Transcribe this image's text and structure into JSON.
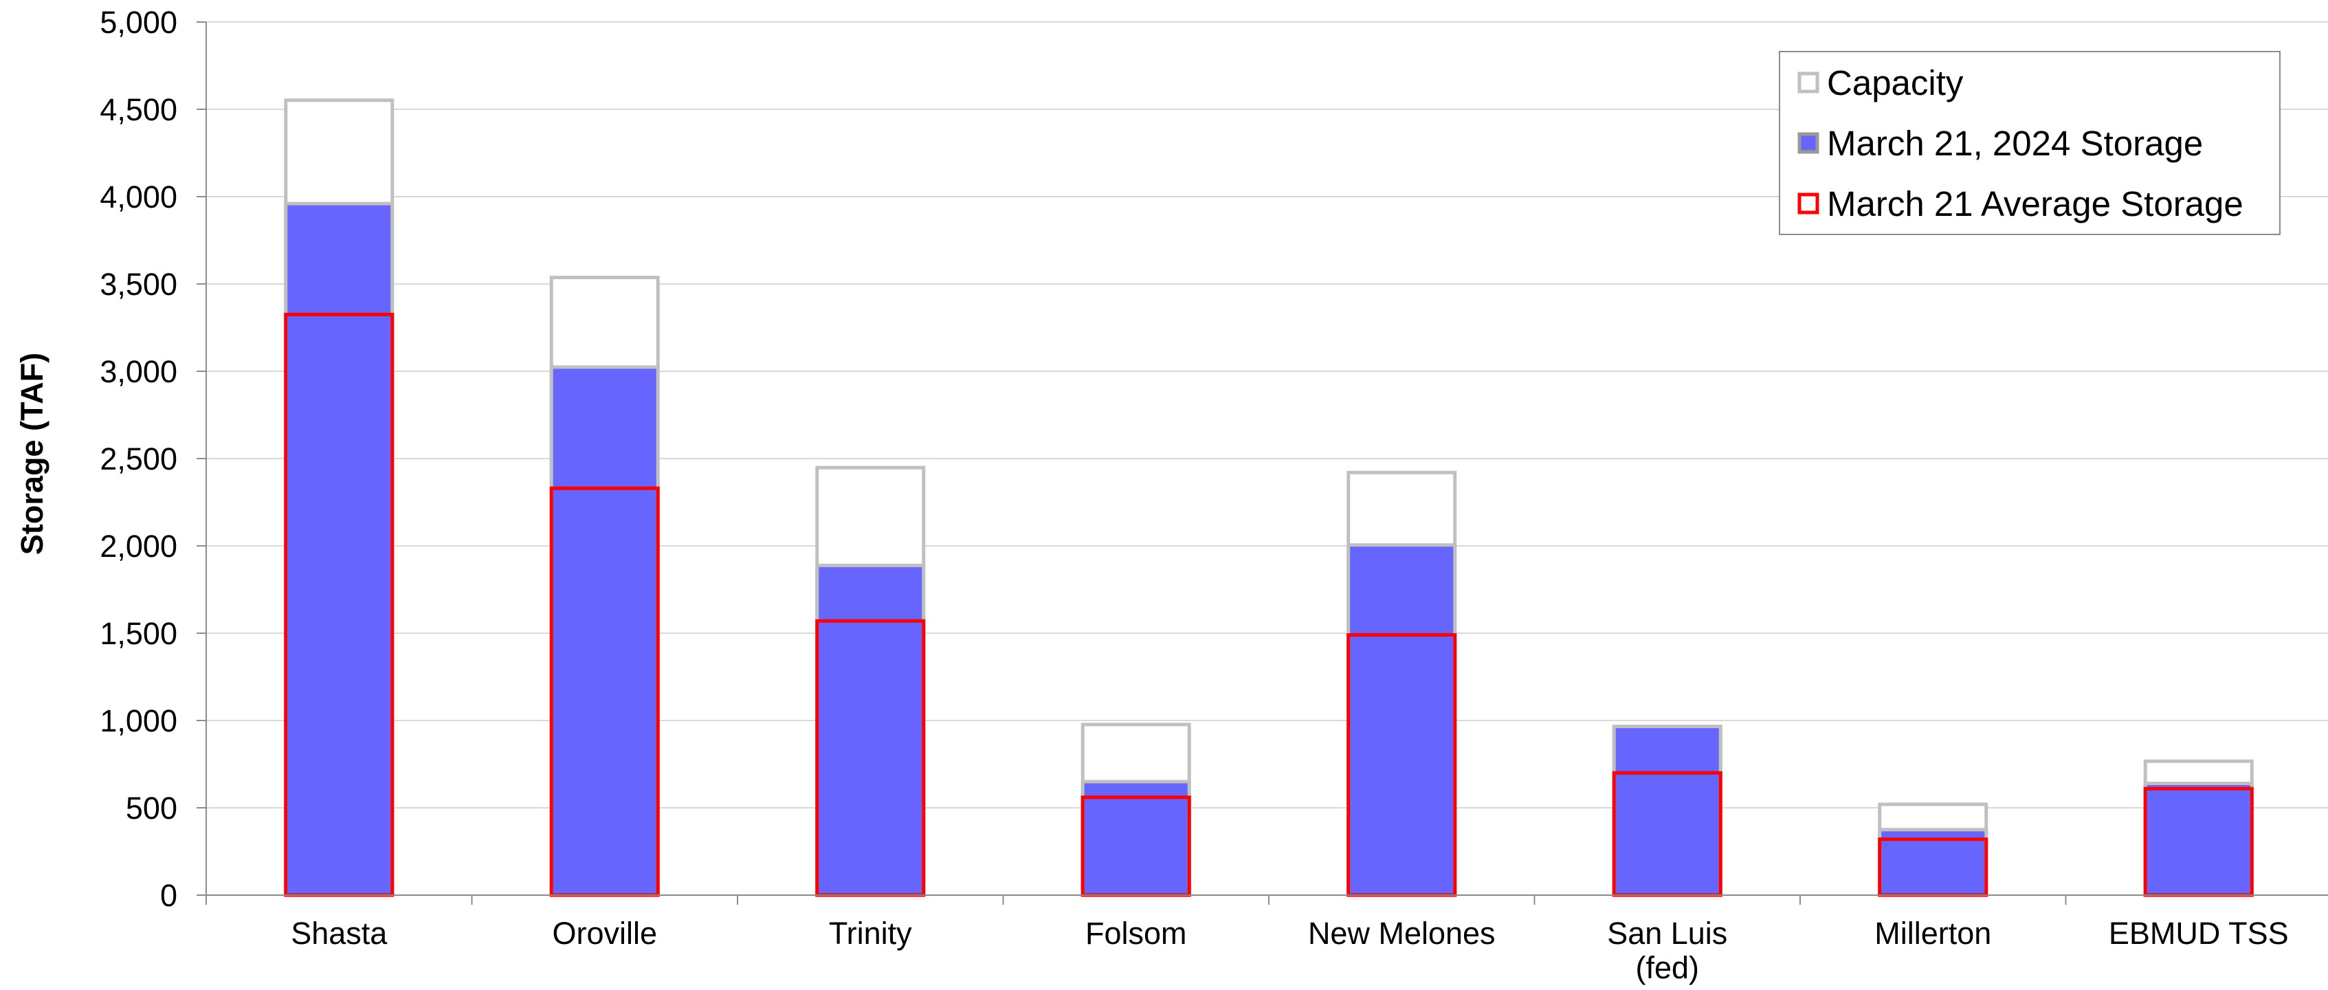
{
  "chart_data": {
    "type": "bar",
    "title": "",
    "xlabel": "",
    "ylabel": "Storage (TAF)",
    "ylim": [
      0,
      5000
    ],
    "yticks": [
      0,
      500,
      1000,
      1500,
      2000,
      2500,
      3000,
      3500,
      4000,
      4500,
      5000
    ],
    "ytick_labels": [
      "0",
      "500",
      "1,000",
      "1,500",
      "2,000",
      "2,500",
      "3,000",
      "3,500",
      "4,000",
      "4,500",
      "5,000"
    ],
    "grid": true,
    "legend_position": "top-right",
    "categories": [
      [
        "Shasta"
      ],
      [
        "Oroville"
      ],
      [
        "Trinity"
      ],
      [
        "Folsom"
      ],
      [
        "New Melones"
      ],
      [
        "San Luis",
        "(fed)"
      ],
      [
        "Millerton"
      ],
      [
        "EBMUD TSS"
      ]
    ],
    "series": [
      {
        "name": "Capacity",
        "style": "outline",
        "color": "#c0c0c0",
        "values": [
          4552,
          3537,
          2448,
          977,
          2420,
          966,
          520,
          767
        ]
      },
      {
        "name": "March 21, 2024 Storage",
        "style": "filled",
        "color": "#6666ff",
        "values": [
          3960,
          3024,
          1888,
          650,
          2005,
          966,
          375,
          640
        ]
      },
      {
        "name": "March 21 Average Storage",
        "style": "outline",
        "color": "#ff0000",
        "values": [
          3325,
          2330,
          1570,
          560,
          1490,
          700,
          320,
          610
        ]
      }
    ]
  }
}
